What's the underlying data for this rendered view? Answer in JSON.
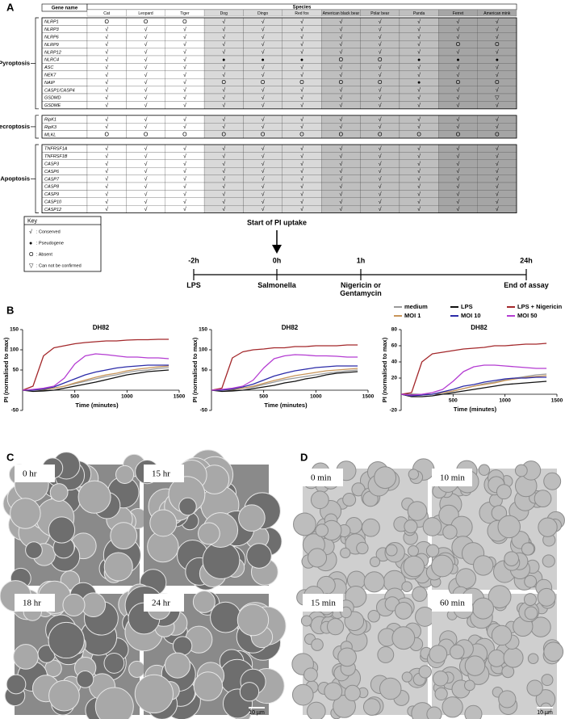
{
  "panel_labels": [
    "A",
    "B",
    "C",
    "D"
  ],
  "table": {
    "header": {
      "gene": "Gene name",
      "species": "Species"
    },
    "species": [
      "Cat",
      "Leopard",
      "Tiger",
      "Dog",
      "Dingo",
      "Red fox",
      "American black bear",
      "Polar bear",
      "Panda",
      "Ferret",
      "American mink"
    ],
    "groups": [
      {
        "name": "Pyroptosis",
        "rows": [
          {
            "gene": "NLRP1",
            "cells": [
              "O",
              "O",
              "O",
              "√",
              "√",
              "√",
              "√",
              "√",
              "√",
              "√",
              "√"
            ]
          },
          {
            "gene": "NLRP3",
            "cells": [
              "√",
              "√",
              "√",
              "√",
              "√",
              "√",
              "√",
              "√",
              "√",
              "√",
              "√"
            ]
          },
          {
            "gene": "NLRP6",
            "cells": [
              "√",
              "√",
              "√",
              "√",
              "√",
              "√",
              "√",
              "√",
              "√",
              "√",
              "√"
            ]
          },
          {
            "gene": "NLRP9",
            "cells": [
              "√",
              "√",
              "√",
              "√",
              "√",
              "√",
              "√",
              "√",
              "√",
              "O",
              "O"
            ]
          },
          {
            "gene": "NLRP12",
            "cells": [
              "√",
              "√",
              "√",
              "√",
              "√",
              "√",
              "√",
              "√",
              "√",
              "√",
              "√"
            ]
          },
          {
            "gene": "NLRC4",
            "cells": [
              "√",
              "√",
              "√",
              "●",
              "●",
              "●",
              "O",
              "O",
              "●",
              "●",
              "●"
            ]
          },
          {
            "gene": "ASC",
            "cells": [
              "√",
              "√",
              "√",
              "√",
              "√",
              "√",
              "√",
              "√",
              "√",
              "√",
              "√"
            ]
          },
          {
            "gene": "NEK7",
            "cells": [
              "√",
              "√",
              "√",
              "√",
              "√",
              "√",
              "√",
              "√",
              "√",
              "√",
              "√"
            ]
          },
          {
            "gene": "NAIP",
            "cells": [
              "√",
              "√",
              "√",
              "O",
              "O",
              "O",
              "O",
              "O",
              "●",
              "O",
              "O"
            ]
          },
          {
            "gene": "CASP1/CASP4",
            "cells": [
              "√",
              "√",
              "√",
              "√",
              "√",
              "√",
              "√",
              "√",
              "√",
              "√",
              "√"
            ]
          },
          {
            "gene": "GSDMD",
            "cells": [
              "√",
              "√",
              "√",
              "√",
              "√",
              "√",
              "√",
              "√",
              "√",
              "√",
              "▽"
            ]
          },
          {
            "gene": "GSDME",
            "cells": [
              "√",
              "√",
              "√",
              "√",
              "√",
              "√",
              "√",
              "√",
              "√",
              "√",
              "√"
            ]
          }
        ]
      },
      {
        "name": "Necroptosis",
        "rows": [
          {
            "gene": "RipK1",
            "cells": [
              "√",
              "√",
              "√",
              "√",
              "√",
              "√",
              "√",
              "√",
              "√",
              "√",
              "√"
            ]
          },
          {
            "gene": "RipK3",
            "cells": [
              "√",
              "√",
              "√",
              "√",
              "√",
              "√",
              "√",
              "√",
              "√",
              "√",
              "√"
            ]
          },
          {
            "gene": "MLKL",
            "cells": [
              "O",
              "O",
              "O",
              "O",
              "O",
              "O",
              "O",
              "O",
              "O",
              "O",
              "O"
            ]
          }
        ]
      },
      {
        "name": "Apoptosis",
        "rows": [
          {
            "gene": "TNFRSF1A",
            "cells": [
              "√",
              "√",
              "√",
              "√",
              "√",
              "√",
              "√",
              "√",
              "√",
              "√",
              "√"
            ]
          },
          {
            "gene": "TNFRSF1B",
            "cells": [
              "√",
              "√",
              "√",
              "√",
              "√",
              "√",
              "√",
              "√",
              "√",
              "√",
              "√"
            ]
          },
          {
            "gene": "CASP3",
            "cells": [
              "√",
              "√",
              "√",
              "√",
              "√",
              "√",
              "√",
              "√",
              "√",
              "√",
              "√"
            ]
          },
          {
            "gene": "CASP6",
            "cells": [
              "√",
              "√",
              "√",
              "√",
              "√",
              "√",
              "√",
              "√",
              "√",
              "√",
              "√"
            ]
          },
          {
            "gene": "CASP7",
            "cells": [
              "√",
              "√",
              "√",
              "√",
              "√",
              "√",
              "√",
              "√",
              "√",
              "√",
              "√"
            ]
          },
          {
            "gene": "CASP8",
            "cells": [
              "√",
              "√",
              "√",
              "√",
              "√",
              "√",
              "√",
              "√",
              "√",
              "√",
              "√"
            ]
          },
          {
            "gene": "CASP9",
            "cells": [
              "√",
              "√",
              "√",
              "√",
              "√",
              "√",
              "√",
              "√",
              "√",
              "√",
              "√"
            ]
          },
          {
            "gene": "CASP10",
            "cells": [
              "√",
              "√",
              "√",
              "√",
              "√",
              "√",
              "√",
              "√",
              "√",
              "√",
              "√"
            ]
          },
          {
            "gene": "CASP12",
            "cells": [
              "√",
              "√",
              "√",
              "√",
              "√",
              "√",
              "√",
              "√",
              "√",
              "√",
              "√"
            ]
          }
        ]
      }
    ]
  },
  "key": {
    "title": "Key",
    "items": [
      {
        "symbol": "√",
        "label": ": Conserved"
      },
      {
        "symbol": "●",
        "label": ": Pseudogene"
      },
      {
        "symbol": "O",
        "label": ": Absent"
      },
      {
        "symbol": "▽",
        "label": ": Can not be confirmed"
      }
    ]
  },
  "timeline": {
    "arrow_label": "Start of PI uptake",
    "points": [
      {
        "time": "-2h",
        "label": "LPS"
      },
      {
        "time": "0h",
        "label": "Salmonella"
      },
      {
        "time": "1h",
        "label": "Nigericin or Gentamycin"
      },
      {
        "time": "24h",
        "label": "End of assay"
      }
    ]
  },
  "chart_data": [
    {
      "type": "line",
      "title": "DH82",
      "y_label": "PI (normalised to max)",
      "x_label": "Time (minutes)",
      "x": [
        0,
        100,
        200,
        300,
        400,
        500,
        600,
        700,
        800,
        900,
        1000,
        1100,
        1200,
        1300,
        1400
      ],
      "xlim": [
        0,
        1500
      ],
      "xticks": [
        500,
        1000,
        1500
      ],
      "ylim": [
        -50,
        150
      ],
      "yticks": [
        -50,
        50,
        100,
        150
      ],
      "series": [
        {
          "color": "#9a9a9a",
          "values": [
            0,
            0,
            2,
            5,
            10,
            16,
            22,
            28,
            34,
            38,
            44,
            48,
            50,
            54,
            56
          ]
        },
        {
          "color": "#111111",
          "values": [
            0,
            -3,
            -2,
            0,
            5,
            10,
            15,
            20,
            26,
            32,
            38,
            42,
            46,
            48,
            50
          ]
        },
        {
          "color": "#a3282b",
          "values": [
            0,
            10,
            85,
            105,
            110,
            115,
            118,
            120,
            122,
            122,
            124,
            125,
            125,
            126,
            126
          ]
        },
        {
          "color": "#c8955a",
          "values": [
            0,
            0,
            2,
            5,
            10,
            18,
            25,
            32,
            38,
            42,
            48,
            52,
            55,
            58,
            60
          ]
        },
        {
          "color": "#2b2ba8",
          "values": [
            0,
            0,
            3,
            8,
            18,
            28,
            38,
            45,
            50,
            55,
            58,
            60,
            62,
            62,
            62
          ]
        },
        {
          "color": "#b43cd2",
          "values": [
            0,
            2,
            5,
            10,
            30,
            65,
            85,
            90,
            88,
            85,
            82,
            82,
            80,
            80,
            78
          ]
        }
      ]
    },
    {
      "type": "line",
      "title": "DH82",
      "y_label": "PI (normalised to max)",
      "x_label": "Time (minutes)",
      "x": [
        0,
        100,
        200,
        300,
        400,
        500,
        600,
        700,
        800,
        900,
        1000,
        1100,
        1200,
        1300,
        1400
      ],
      "xlim": [
        0,
        1500
      ],
      "xticks": [
        500,
        1000,
        1500
      ],
      "ylim": [
        -50,
        150
      ],
      "yticks": [
        -50,
        50,
        100,
        150
      ],
      "series": [
        {
          "color": "#9a9a9a",
          "values": [
            0,
            0,
            2,
            5,
            8,
            14,
            20,
            26,
            30,
            34,
            38,
            42,
            45,
            48,
            50
          ]
        },
        {
          "color": "#111111",
          "values": [
            0,
            -3,
            -2,
            0,
            4,
            8,
            12,
            18,
            22,
            28,
            32,
            38,
            42,
            44,
            46
          ]
        },
        {
          "color": "#a3282b",
          "values": [
            0,
            5,
            80,
            95,
            100,
            102,
            105,
            105,
            108,
            108,
            110,
            110,
            110,
            112,
            112
          ]
        },
        {
          "color": "#c8955a",
          "values": [
            0,
            0,
            2,
            5,
            10,
            17,
            24,
            30,
            36,
            40,
            44,
            48,
            50,
            52,
            54
          ]
        },
        {
          "color": "#2b2ba8",
          "values": [
            0,
            0,
            3,
            8,
            15,
            25,
            35,
            42,
            48,
            52,
            56,
            58,
            60,
            60,
            60
          ]
        },
        {
          "color": "#b43cd2",
          "values": [
            0,
            2,
            5,
            10,
            25,
            55,
            78,
            85,
            88,
            87,
            85,
            85,
            84,
            82,
            82
          ]
        }
      ]
    },
    {
      "type": "line",
      "title": "DH82",
      "y_label": "PI (normalised to max)",
      "x_label": "Time (minutes)",
      "x": [
        0,
        100,
        200,
        300,
        400,
        500,
        600,
        700,
        800,
        900,
        1000,
        1100,
        1200,
        1300,
        1400
      ],
      "xlim": [
        0,
        1500
      ],
      "xticks": [
        500,
        1000,
        1500
      ],
      "ylim": [
        -20,
        80
      ],
      "yticks": [
        -20,
        20,
        40,
        60,
        80
      ],
      "series": [
        {
          "name": "medium",
          "color": "#9a9a9a",
          "values": [
            0,
            -2,
            -1,
            0,
            2,
            4,
            7,
            10,
            13,
            15,
            18,
            20,
            22,
            24,
            25
          ]
        },
        {
          "name": "LPS",
          "color": "#111111",
          "values": [
            0,
            -3,
            -3,
            -2,
            0,
            2,
            4,
            6,
            8,
            10,
            12,
            13,
            14,
            15,
            16
          ]
        },
        {
          "name": "LPS + Nigericin",
          "color": "#a3282b",
          "values": [
            0,
            2,
            40,
            50,
            52,
            54,
            56,
            57,
            58,
            60,
            60,
            61,
            62,
            62,
            63
          ]
        },
        {
          "name": "MOI 1",
          "color": "#c8955a",
          "values": [
            0,
            -2,
            -1,
            0,
            2,
            4,
            7,
            10,
            12,
            14,
            17,
            19,
            21,
            22,
            23
          ]
        },
        {
          "name": "MOI 10",
          "color": "#2b2ba8",
          "values": [
            0,
            -2,
            -1,
            0,
            3,
            6,
            10,
            12,
            15,
            17,
            19,
            20,
            20,
            21,
            21
          ]
        },
        {
          "name": "MOI 50",
          "color": "#b43cd2",
          "values": [
            0,
            -1,
            0,
            2,
            6,
            16,
            28,
            34,
            36,
            36,
            35,
            34,
            33,
            32,
            32
          ]
        }
      ]
    }
  ],
  "images": {
    "C": {
      "frames": [
        "0 hr",
        "15 hr",
        "18 hr",
        "24 hr"
      ],
      "scale_bar": "10 µm"
    },
    "D": {
      "frames": [
        "0 min",
        "10 min",
        "15 min",
        "60 min"
      ],
      "scale_bar": "10 µm"
    }
  }
}
